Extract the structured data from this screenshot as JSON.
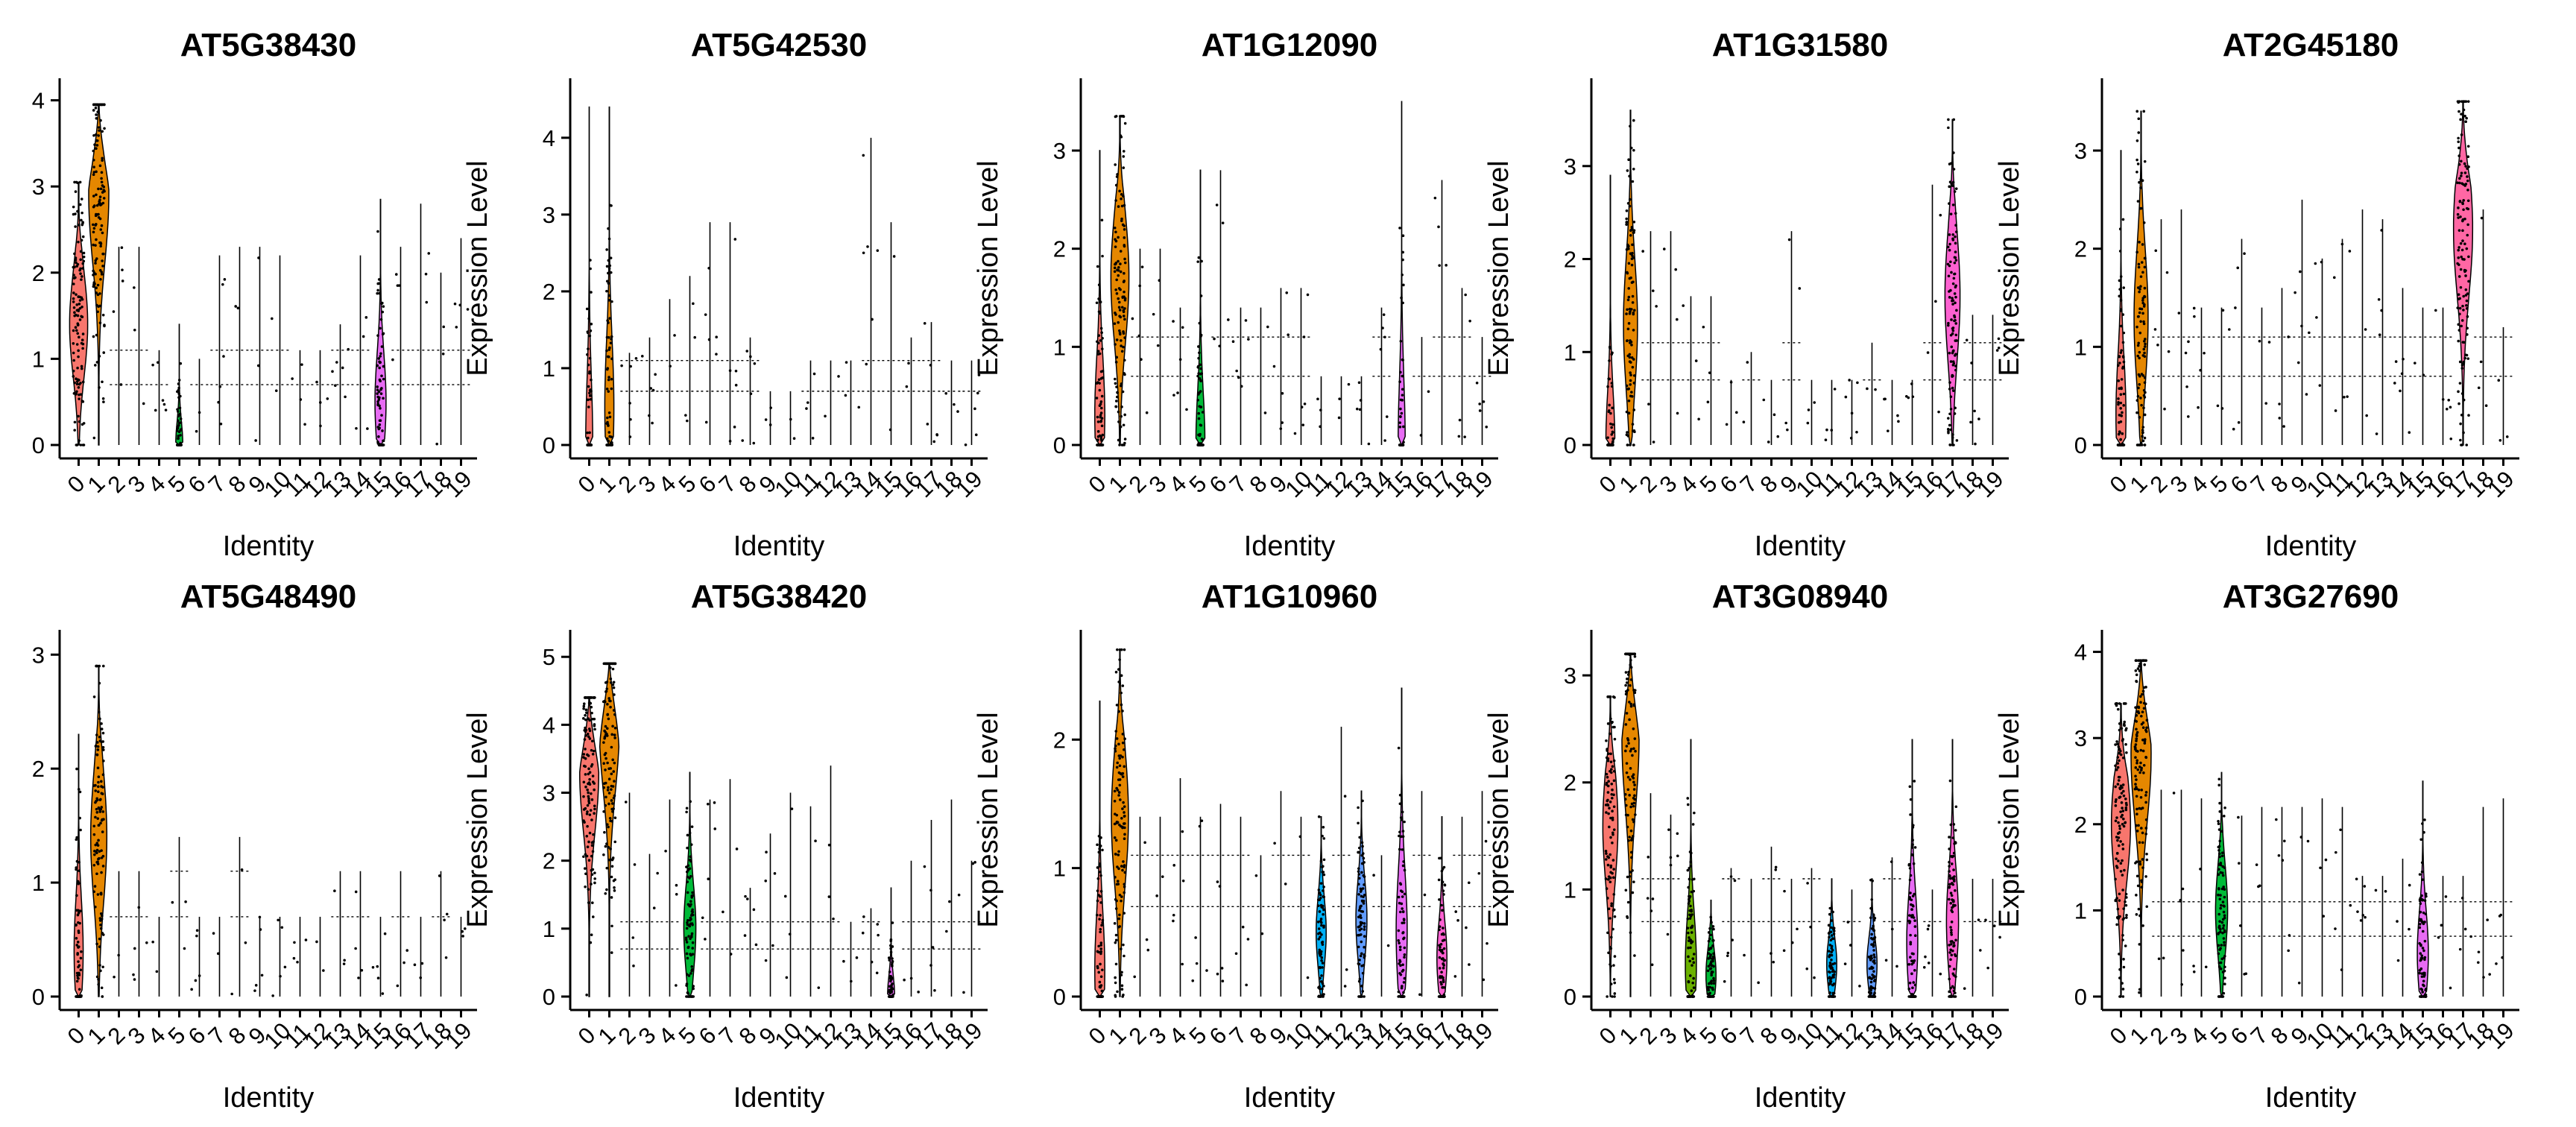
{
  "figure": {
    "layout": "2 rows x 5 columns of violin plots"
  },
  "cluster_colors": [
    "#F8766D",
    "#E58700",
    "#C99800",
    "#A3A500",
    "#6BB100",
    "#00BA38",
    "#00BF7D",
    "#00C0AF",
    "#00BCD8",
    "#00B0F6",
    "#619CFF",
    "#B983FF",
    "#E76BF3",
    "#FD61D1",
    "#FF67A4",
    "#F8766D",
    "#E76BF3",
    "#FD61D1",
    "#FF67A4",
    "#FF6C91"
  ],
  "chart_data": [
    {
      "type": "violin",
      "title": "AT5G38430",
      "xlabel": "Identity",
      "ylabel": "Expression Level",
      "categories": [
        "0",
        "1",
        "2",
        "3",
        "4",
        "5",
        "6",
        "7",
        "8",
        "9",
        "10",
        "11",
        "12",
        "13",
        "14",
        "15",
        "16",
        "17",
        "18",
        "19"
      ],
      "yticks": [
        "0",
        "1",
        "2",
        "3",
        "4"
      ],
      "ylim": [
        0,
        4.1
      ],
      "violins": [
        {
          "cluster": "0",
          "max": 3.05,
          "median": 1.4,
          "width": 0.9,
          "color": "#F8766D"
        },
        {
          "cluster": "1",
          "max": 3.95,
          "median": 2.9,
          "width": 1.0,
          "color": "#E58700"
        },
        {
          "cluster": "5",
          "max": 1.4,
          "median": 0,
          "width": 0.35,
          "color": "#00BA38"
        },
        {
          "cluster": "15",
          "max": 2.85,
          "median": 0.5,
          "width": 0.55,
          "color": "#E76BF3"
        }
      ],
      "spikes": [
        2.3,
        2.3,
        1.1,
        1.0,
        2.2,
        2.3,
        2.3,
        2.2,
        1.1,
        1.1,
        1.4,
        2.2,
        2.3,
        2.8,
        2.0,
        2.4,
        2.4,
        0.7
      ]
    },
    {
      "type": "violin",
      "title": "AT5G42530",
      "xlabel": "Identity",
      "ylabel": "Expression Level",
      "categories": [
        "0",
        "1",
        "2",
        "3",
        "4",
        "5",
        "6",
        "7",
        "8",
        "9",
        "10",
        "11",
        "12",
        "13",
        "14",
        "15",
        "16",
        "17",
        "18",
        "19"
      ],
      "yticks": [
        "0",
        "1",
        "2",
        "3",
        "4"
      ],
      "ylim": [
        0,
        4.6
      ],
      "violins": [
        {
          "cluster": "0",
          "max": 4.4,
          "median": 0,
          "width": 0.35,
          "color": "#F8766D"
        },
        {
          "cluster": "1",
          "max": 4.4,
          "median": 0.5,
          "width": 0.45,
          "color": "#E58700"
        }
      ],
      "spikes": [
        1.2,
        1.4,
        1.9,
        2.2,
        2.9,
        2.9,
        1.4,
        0.7,
        0.7,
        1.1,
        1.1,
        1.1,
        4.0,
        2.9,
        1.4,
        1.6,
        1.1,
        1.1
      ]
    },
    {
      "type": "violin",
      "title": "AT1G12090",
      "xlabel": "Identity",
      "ylabel": "Expression Level",
      "categories": [
        "0",
        "1",
        "2",
        "3",
        "4",
        "5",
        "6",
        "7",
        "8",
        "9",
        "10",
        "11",
        "12",
        "13",
        "14",
        "15",
        "16",
        "17",
        "18",
        "19"
      ],
      "yticks": [
        "0",
        "1",
        "2",
        "3"
      ],
      "ylim": [
        0,
        3.6
      ],
      "violins": [
        {
          "cluster": "0",
          "max": 3.0,
          "median": 0.3,
          "width": 0.5,
          "color": "#F8766D"
        },
        {
          "cluster": "1",
          "max": 3.35,
          "median": 1.7,
          "width": 0.9,
          "color": "#E58700"
        },
        {
          "cluster": "5",
          "max": 2.8,
          "median": 0,
          "width": 0.45,
          "color": "#00BA38"
        },
        {
          "cluster": "15",
          "max": 3.5,
          "median": 0,
          "width": 0.35,
          "color": "#E76BF3"
        }
      ],
      "spikes": [
        2.0,
        2.0,
        1.4,
        2.8,
        1.4,
        1.4,
        1.6,
        1.6,
        0.7,
        0.7,
        0.7,
        1.4,
        1.1,
        2.7,
        1.6,
        1.1,
        1.4,
        1.4
      ]
    },
    {
      "type": "violin",
      "title": "AT1G31580",
      "xlabel": "Identity",
      "ylabel": "Expression Level",
      "categories": [
        "0",
        "1",
        "2",
        "3",
        "4",
        "5",
        "6",
        "7",
        "8",
        "9",
        "10",
        "11",
        "12",
        "13",
        "14",
        "15",
        "16",
        "17",
        "18",
        "19"
      ],
      "yticks": [
        "0",
        "1",
        "2",
        "3"
      ],
      "ylim": [
        0,
        3.8
      ],
      "violins": [
        {
          "cluster": "0",
          "max": 2.9,
          "median": 0,
          "width": 0.45,
          "color": "#F8766D"
        },
        {
          "cluster": "1",
          "max": 3.6,
          "median": 1.3,
          "width": 0.7,
          "color": "#E58700"
        },
        {
          "cluster": "17",
          "max": 3.5,
          "median": 1.6,
          "width": 0.75,
          "color": "#FD61D1"
        }
      ],
      "spikes": [
        2.3,
        2.3,
        1.6,
        1.6,
        0.7,
        1.0,
        0.7,
        2.3,
        0.7,
        0.7,
        0.7,
        1.1,
        0.7,
        0.7,
        2.8,
        1.4,
        1.4,
        0.7
      ]
    },
    {
      "type": "violin",
      "title": "AT2G45180",
      "xlabel": "Identity",
      "ylabel": "Expression Level",
      "categories": [
        "0",
        "1",
        "2",
        "3",
        "4",
        "5",
        "6",
        "7",
        "8",
        "9",
        "10",
        "11",
        "12",
        "13",
        "14",
        "15",
        "16",
        "17",
        "18",
        "19"
      ],
      "yticks": [
        "0",
        "1",
        "2",
        "3"
      ],
      "ylim": [
        0,
        3.6
      ],
      "violins": [
        {
          "cluster": "0",
          "max": 3.0,
          "median": 0.3,
          "width": 0.5,
          "color": "#F8766D"
        },
        {
          "cluster": "1",
          "max": 3.4,
          "median": 1.3,
          "width": 0.7,
          "color": "#E58700"
        },
        {
          "cluster": "17",
          "max": 3.5,
          "median": 2.2,
          "width": 0.95,
          "color": "#FF67A4"
        }
      ],
      "spikes": [
        2.3,
        2.4,
        1.4,
        1.4,
        2.1,
        1.4,
        1.6,
        2.5,
        1.9,
        2.1,
        2.4,
        2.3,
        1.6,
        1.4,
        1.4,
        2.4,
        1.2,
        1.0
      ]
    },
    {
      "type": "violin",
      "title": "AT5G48490",
      "xlabel": "Identity",
      "ylabel": "Expression Level",
      "categories": [
        "0",
        "1",
        "2",
        "3",
        "4",
        "5",
        "6",
        "7",
        "8",
        "9",
        "10",
        "11",
        "12",
        "13",
        "14",
        "15",
        "16",
        "17",
        "18",
        "19"
      ],
      "yticks": [
        "0",
        "1",
        "2",
        "3"
      ],
      "ylim": [
        0,
        3.1
      ],
      "violins": [
        {
          "cluster": "0",
          "max": 2.3,
          "median": 0.4,
          "width": 0.45,
          "color": "#F8766D"
        },
        {
          "cluster": "1",
          "max": 2.9,
          "median": 1.4,
          "width": 0.8,
          "color": "#E58700"
        }
      ],
      "spikes": [
        1.1,
        1.1,
        0.7,
        1.4,
        0.7,
        0.7,
        1.4,
        0.7,
        0.7,
        0.7,
        0.7,
        1.1,
        1.1,
        0.7,
        1.1,
        0.7,
        1.1,
        0.7
      ]
    },
    {
      "type": "violin",
      "title": "AT5G38420",
      "xlabel": "Identity",
      "ylabel": "Expression Level",
      "categories": [
        "0",
        "1",
        "2",
        "3",
        "4",
        "5",
        "6",
        "7",
        "8",
        "9",
        "10",
        "11",
        "12",
        "13",
        "14",
        "15",
        "16",
        "17",
        "18",
        "19"
      ],
      "yticks": [
        "0",
        "1",
        "2",
        "3",
        "4",
        "5"
      ],
      "ylim": [
        0,
        5.2
      ],
      "violins": [
        {
          "cluster": "0",
          "max": 4.4,
          "median": 3.3,
          "width": 0.95,
          "color": "#F8766D"
        },
        {
          "cluster": "1",
          "max": 4.9,
          "median": 4.0,
          "width": 1.0,
          "color": "#E58700"
        },
        {
          "cluster": "5",
          "max": 3.3,
          "median": 1.0,
          "width": 0.6,
          "color": "#00BA38"
        },
        {
          "cluster": "15",
          "max": 1.6,
          "median": 0,
          "width": 0.35,
          "color": "#E76BF3"
        }
      ],
      "spikes": [
        3.0,
        2.1,
        2.9,
        2.9,
        3.2,
        1.6,
        2.4,
        3.0,
        2.8,
        3.4,
        1.1,
        1.3,
        2.0,
        2.6,
        2.9,
        2.0,
        3.3,
        1.8
      ]
    },
    {
      "type": "violin",
      "title": "AT1G10960",
      "xlabel": "Identity",
      "ylabel": "Expression Level",
      "categories": [
        "0",
        "1",
        "2",
        "3",
        "4",
        "5",
        "6",
        "7",
        "8",
        "9",
        "10",
        "11",
        "12",
        "13",
        "14",
        "15",
        "16",
        "17",
        "18",
        "19"
      ],
      "yticks": [
        "0",
        "1",
        "2"
      ],
      "ylim": [
        0,
        2.75
      ],
      "violins": [
        {
          "cluster": "0",
          "max": 2.3,
          "median": 0.2,
          "width": 0.5,
          "color": "#F8766D"
        },
        {
          "cluster": "1",
          "max": 2.7,
          "median": 1.4,
          "width": 0.85,
          "color": "#E58700"
        },
        {
          "cluster": "11",
          "max": 1.4,
          "median": 0.5,
          "width": 0.5,
          "color": "#00B0F6"
        },
        {
          "cluster": "13",
          "max": 1.6,
          "median": 0.6,
          "width": 0.55,
          "color": "#619CFF"
        },
        {
          "cluster": "15",
          "max": 2.4,
          "median": 0.5,
          "width": 0.55,
          "color": "#E76BF3"
        },
        {
          "cluster": "17",
          "max": 1.4,
          "median": 0.3,
          "width": 0.5,
          "color": "#FD61D1"
        }
      ],
      "spikes": [
        1.4,
        1.4,
        1.7,
        1.4,
        1.5,
        1.4,
        1.1,
        1.6,
        1.4,
        2.1,
        1.1,
        1.6,
        1.4,
        1.6,
        1.4,
        1.4
      ]
    },
    {
      "type": "violin",
      "title": "AT3G08940",
      "xlabel": "Identity",
      "ylabel": "Expression Level",
      "categories": [
        "0",
        "1",
        "2",
        "3",
        "4",
        "5",
        "6",
        "7",
        "8",
        "9",
        "10",
        "11",
        "12",
        "13",
        "14",
        "15",
        "16",
        "17",
        "18",
        "19"
      ],
      "yticks": [
        "0",
        "1",
        "2",
        "3"
      ],
      "ylim": [
        0,
        3.3
      ],
      "violins": [
        {
          "cluster": "0",
          "max": 2.8,
          "median": 1.6,
          "width": 0.75,
          "color": "#F8766D"
        },
        {
          "cluster": "1",
          "max": 3.2,
          "median": 2.4,
          "width": 0.85,
          "color": "#E58700"
        },
        {
          "cluster": "4",
          "max": 2.4,
          "median": 0.3,
          "width": 0.55,
          "color": "#6BB100"
        },
        {
          "cluster": "5",
          "max": 0.9,
          "median": 0.2,
          "width": 0.5,
          "color": "#00BA38"
        },
        {
          "cluster": "11",
          "max": 1.1,
          "median": 0.3,
          "width": 0.5,
          "color": "#00B0F6"
        },
        {
          "cluster": "13",
          "max": 1.1,
          "median": 0.3,
          "width": 0.5,
          "color": "#619CFF"
        },
        {
          "cluster": "15",
          "max": 2.4,
          "median": 0.5,
          "width": 0.55,
          "color": "#E76BF3"
        },
        {
          "cluster": "17",
          "max": 2.4,
          "median": 0.7,
          "width": 0.6,
          "color": "#FD61D1"
        }
      ],
      "spikes": [
        1.9,
        1.7,
        1.2,
        1.1,
        1.4,
        1.1,
        1.2,
        1.0,
        1.3,
        1.0,
        1.1,
        1.1,
        1.1,
        1.1
      ]
    },
    {
      "type": "violin",
      "title": "AT3G27690",
      "xlabel": "Identity",
      "ylabel": "Expression Level",
      "categories": [
        "0",
        "1",
        "2",
        "3",
        "4",
        "5",
        "6",
        "7",
        "8",
        "9",
        "10",
        "11",
        "12",
        "13",
        "14",
        "15",
        "16",
        "17",
        "18",
        "19"
      ],
      "yticks": [
        "0",
        "1",
        "2",
        "3",
        "4"
      ],
      "ylim": [
        0,
        4.1
      ],
      "violins": [
        {
          "cluster": "0",
          "max": 3.4,
          "median": 2.0,
          "width": 0.95,
          "color": "#F8766D"
        },
        {
          "cluster": "1",
          "max": 3.9,
          "median": 2.8,
          "width": 1.0,
          "color": "#E58700"
        },
        {
          "cluster": "5",
          "max": 2.6,
          "median": 1.0,
          "width": 0.6,
          "color": "#00BA38"
        },
        {
          "cluster": "15",
          "max": 2.5,
          "median": 0.5,
          "width": 0.55,
          "color": "#E76BF3"
        }
      ],
      "spikes": [
        2.4,
        2.4,
        2.3,
        2.1,
        2.2,
        2.2,
        2.2,
        2.3,
        2.2,
        1.4,
        1.4,
        1.6,
        1.4,
        1.4,
        2.2,
        2.3,
        1.4,
        2.3
      ]
    }
  ]
}
